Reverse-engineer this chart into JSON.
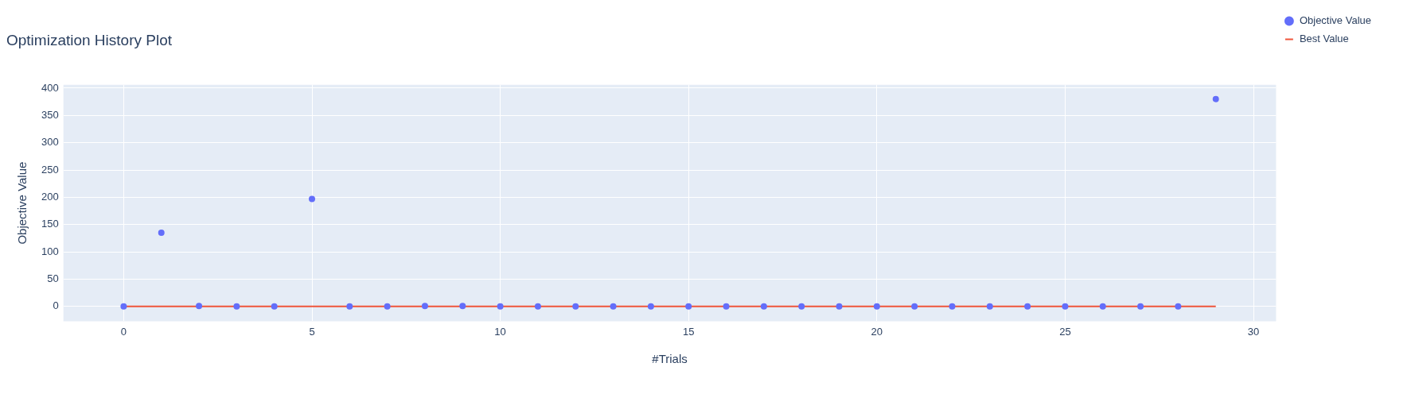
{
  "chart_data": {
    "type": "scatter",
    "title": "Optimization History Plot",
    "xlabel": "#Trials",
    "ylabel": "Objective Value",
    "xlim": [
      -1.6,
      30.6
    ],
    "xticks": [
      0,
      5,
      10,
      15,
      20,
      25,
      30
    ],
    "ylim": [
      -27,
      406
    ],
    "yticks": [
      0,
      50,
      100,
      150,
      200,
      250,
      300,
      350,
      400
    ],
    "grid": true,
    "legend": "top right",
    "marker": "circle",
    "series": [
      {
        "name": "Objective Value",
        "color": "#636efa",
        "x": [
          0,
          1,
          2,
          3,
          4,
          5,
          6,
          7,
          8,
          9,
          10,
          11,
          12,
          13,
          14,
          15,
          16,
          17,
          18,
          19,
          20,
          21,
          22,
          23,
          24,
          25,
          26,
          27,
          28,
          29
        ],
        "values": [
          0,
          135,
          1,
          0,
          0,
          197,
          0,
          0,
          1,
          1,
          0,
          0,
          0,
          0,
          0,
          0,
          0,
          0,
          0,
          0,
          0,
          0,
          0,
          0,
          0,
          0,
          0,
          0,
          0,
          380
        ]
      },
      {
        "name": "Best Value",
        "type": "line",
        "color": "#ef553b",
        "x": [
          0,
          1,
          2,
          3,
          4,
          5,
          6,
          7,
          8,
          9,
          10,
          11,
          12,
          13,
          14,
          15,
          16,
          17,
          18,
          19,
          20,
          21,
          22,
          23,
          24,
          25,
          26,
          27,
          28,
          29
        ],
        "values": [
          0,
          0,
          0,
          0,
          0,
          0,
          0,
          0,
          0,
          0,
          0,
          0,
          0,
          0,
          0,
          0,
          0,
          0,
          0,
          0,
          0,
          0,
          0,
          0,
          0,
          0,
          0,
          0,
          0,
          0
        ],
        "marker": "none"
      }
    ]
  }
}
